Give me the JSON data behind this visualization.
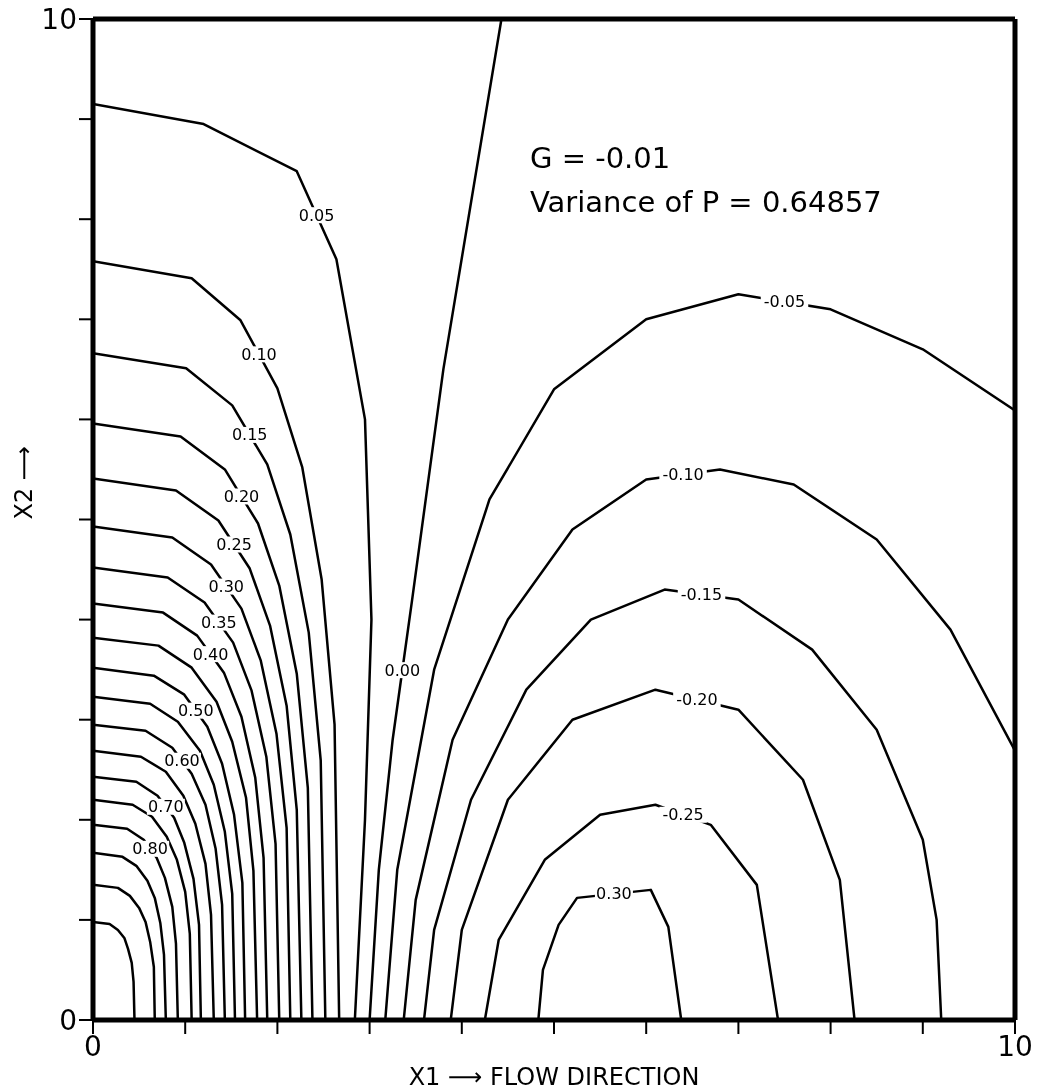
{
  "chart_data": {
    "type": "line",
    "xlabel": "X1 ⟶ FLOW DIRECTION",
    "ylabel": "X2 ⟶",
    "xlim": [
      0,
      10
    ],
    "ylim": [
      0,
      10
    ],
    "xticks": [
      0,
      {
        "value": 1,
        "label": null
      },
      {
        "value": 2,
        "label": null
      },
      {
        "value": 3,
        "label": null
      },
      {
        "value": 4,
        "label": null
      },
      {
        "value": 5,
        "label": null
      },
      {
        "value": 6,
        "label": null
      },
      {
        "value": 7,
        "label": null
      },
      {
        "value": 8,
        "label": null
      },
      {
        "value": 9,
        "label": null
      },
      10
    ],
    "yticks": [
      0,
      {
        "value": 1,
        "label": null
      },
      {
        "value": 2,
        "label": null
      },
      {
        "value": 3,
        "label": null
      },
      {
        "value": 4,
        "label": null
      },
      {
        "value": 5,
        "label": null
      },
      {
        "value": 6,
        "label": null
      },
      {
        "value": 7,
        "label": null
      },
      {
        "value": 8,
        "label": null
      },
      {
        "value": 9,
        "label": null
      },
      10
    ],
    "annotations": [
      "G = -0.01",
      "Variance of P = 0.64857",
      {
        "text": "0.05",
        "x": 2.425,
        "y": 8.04
      },
      {
        "text": "0.10",
        "x": 1.8,
        "y": 6.65
      },
      {
        "text": "0.15",
        "x": 1.7,
        "y": 5.845
      },
      {
        "text": "0.20",
        "x": 1.61,
        "y": 5.23
      },
      {
        "text": "0.25",
        "x": 1.53,
        "y": 4.75
      },
      {
        "text": "0.30",
        "x": 1.445,
        "y": 4.33
      },
      {
        "text": "0.35",
        "x": 1.365,
        "y": 3.97
      },
      {
        "text": "0.40",
        "x": 1.275,
        "y": 3.655
      },
      {
        "text": "0.50",
        "x": 1.115,
        "y": 3.09
      },
      {
        "text": "0.60",
        "x": 0.965,
        "y": 2.59
      },
      {
        "text": "0.70",
        "x": 0.79,
        "y": 2.13
      },
      {
        "text": "0.80",
        "x": 0.62,
        "y": 1.71
      },
      {
        "text": "0.00",
        "x": 3.355,
        "y": 3.495
      },
      {
        "text": "-0.05",
        "x": 7.5,
        "y": 7.175
      },
      {
        "text": "-0.10",
        "x": 6.4,
        "y": 5.45
      },
      {
        "text": "-0.15",
        "x": 6.6,
        "y": 4.25
      },
      {
        "text": "-0.20",
        "x": 6.55,
        "y": 3.2
      },
      {
        "text": "-0.25",
        "x": 6.4,
        "y": 2.05
      },
      {
        "text": "0.30",
        "x": 5.65,
        "y": 1.26
      }
    ],
    "series": [
      {
        "color": "#000000",
        "x": [
          0,
          1.2,
          2.21,
          2.64,
          2.95,
          3.02,
          2.95,
          2.84
        ],
        "values": [
          9.15,
          8.95,
          8.48,
          7.6,
          6.0,
          4.0,
          2.0,
          0
        ]
      },
      {
        "color": "#000000",
        "x": [
          0,
          1.07,
          1.6,
          2.0,
          2.27,
          2.48,
          2.62,
          2.67
        ],
        "values": [
          7.58,
          7.41,
          6.99,
          6.31,
          5.52,
          4.4,
          2.95,
          0
        ]
      },
      {
        "color": "#000000",
        "x": [
          0,
          1.01,
          1.51,
          1.89,
          2.14,
          2.34,
          2.47,
          2.52
        ],
        "values": [
          6.66,
          6.51,
          6.14,
          5.55,
          4.85,
          3.87,
          2.59,
          0
        ]
      },
      {
        "color": "#000000",
        "x": [
          0,
          0.95,
          1.43,
          1.79,
          2.02,
          2.21,
          2.33,
          2.38
        ],
        "values": [
          5.96,
          5.83,
          5.5,
          4.96,
          4.34,
          3.46,
          2.32,
          0
        ]
      },
      {
        "color": "#000000",
        "x": [
          0,
          0.9,
          1.36,
          1.7,
          1.92,
          2.1,
          2.21,
          2.26
        ],
        "values": [
          5.41,
          5.29,
          4.99,
          4.51,
          3.94,
          3.14,
          2.1,
          0
        ]
      },
      {
        "color": "#000000",
        "x": [
          0,
          0.86,
          1.28,
          1.61,
          1.82,
          1.99,
          2.1,
          2.14
        ],
        "values": [
          4.93,
          4.82,
          4.55,
          4.11,
          3.59,
          2.86,
          1.92,
          0
        ]
      },
      {
        "color": "#000000",
        "x": [
          0,
          0.81,
          1.21,
          1.52,
          1.72,
          1.88,
          1.98,
          2.02
        ],
        "values": [
          4.52,
          4.42,
          4.17,
          3.77,
          3.29,
          2.63,
          1.76,
          0
        ]
      },
      {
        "color": "#000000",
        "x": [
          0,
          0.76,
          1.13,
          1.42,
          1.61,
          1.76,
          1.85,
          1.89
        ],
        "values": [
          4.16,
          4.07,
          3.84,
          3.47,
          3.03,
          2.42,
          1.62,
          0
        ]
      },
      {
        "color": "#000000",
        "x": [
          0,
          0.71,
          1.07,
          1.34,
          1.51,
          1.66,
          1.74,
          1.78
        ],
        "values": [
          3.82,
          3.74,
          3.52,
          3.18,
          2.78,
          2.22,
          1.49,
          0
        ]
      },
      {
        "color": "#000000",
        "x": [
          0,
          0.66,
          0.99,
          1.24,
          1.4,
          1.53,
          1.62,
          1.65
        ],
        "values": [
          3.52,
          3.44,
          3.25,
          2.93,
          2.56,
          2.05,
          1.37,
          0
        ]
      },
      {
        "color": "#000000",
        "x": [
          0,
          0.62,
          0.92,
          1.16,
          1.31,
          1.43,
          1.51,
          1.54
        ],
        "values": [
          3.23,
          3.16,
          2.98,
          2.69,
          2.35,
          1.88,
          1.26,
          0
        ]
      },
      {
        "color": "#000000",
        "x": [
          0,
          0.57,
          0.86,
          1.07,
          1.22,
          1.33,
          1.4,
          1.43
        ],
        "values": [
          2.95,
          2.89,
          2.72,
          2.46,
          2.15,
          1.71,
          1.15,
          0
        ]
      },
      {
        "color": "#000000",
        "x": [
          0,
          0.52,
          0.79,
          0.98,
          1.11,
          1.22,
          1.28,
          1.31
        ],
        "values": [
          2.69,
          2.63,
          2.48,
          2.24,
          1.96,
          1.56,
          1.05,
          0
        ]
      },
      {
        "color": "#000000",
        "x": [
          0,
          0.47,
          0.7,
          0.88,
          0.99,
          1.09,
          1.15,
          1.17
        ],
        "values": [
          2.43,
          2.38,
          2.24,
          2.02,
          1.77,
          1.41,
          0.95,
          0
        ]
      },
      {
        "color": "#000000",
        "x": [
          0,
          0.43,
          0.64,
          0.8,
          0.91,
          1.0,
          1.05,
          1.07
        ],
        "values": [
          2.2,
          2.15,
          2.03,
          1.83,
          1.6,
          1.28,
          0.86,
          0
        ]
      },
      {
        "color": "#000000",
        "x": [
          0,
          0.37,
          0.55,
          0.69,
          0.78,
          0.86,
          0.9,
          0.92
        ],
        "values": [
          1.95,
          1.91,
          1.8,
          1.62,
          1.42,
          1.13,
          0.76,
          0
        ]
      },
      {
        "color": "#000000",
        "x": [
          0,
          0.32,
          0.47,
          0.59,
          0.67,
          0.73,
          0.77,
          0.79
        ],
        "values": [
          1.67,
          1.63,
          1.54,
          1.39,
          1.22,
          0.97,
          0.65,
          0
        ]
      },
      {
        "color": "#000000",
        "x": [
          0,
          0.27,
          0.4,
          0.5,
          0.57,
          0.62,
          0.66,
          0.67
        ],
        "values": [
          1.35,
          1.32,
          1.24,
          1.12,
          0.98,
          0.78,
          0.53,
          0
        ]
      },
      {
        "color": "#000000",
        "x": [
          0,
          0.18,
          0.27,
          0.34,
          0.38,
          0.42,
          0.44,
          0.45
        ],
        "values": [
          0.98,
          0.96,
          0.9,
          0.82,
          0.71,
          0.57,
          0.38,
          0
        ]
      },
      {
        "color": "#000000",
        "x": [
          3.0,
          3.1,
          3.25,
          3.46,
          3.8,
          4.43
        ],
        "values": [
          0,
          1.5,
          2.8,
          4.19,
          6.5,
          10
        ]
      },
      {
        "color": "#000000",
        "x": [
          3.17,
          3.3,
          3.7,
          4.3,
          5.0,
          6.0,
          7.0,
          8.0,
          9.0,
          10
        ],
        "values": [
          0,
          1.5,
          3.5,
          5.2,
          6.3,
          7.0,
          7.25,
          7.1,
          6.7,
          6.09
        ]
      },
      {
        "color": "#000000",
        "x": [
          3.37,
          3.5,
          3.9,
          4.5,
          5.2,
          6.0,
          6.8,
          7.6,
          8.5,
          9.3,
          10
        ],
        "values": [
          0,
          1.2,
          2.8,
          4.0,
          4.9,
          5.4,
          5.5,
          5.35,
          4.8,
          3.9,
          2.69
        ]
      },
      {
        "color": "#000000",
        "x": [
          3.59,
          3.7,
          4.1,
          4.7,
          5.4,
          6.2,
          7.0,
          7.8,
          8.5,
          9.0,
          9.15,
          9.2
        ],
        "values": [
          0,
          0.9,
          2.2,
          3.3,
          4.0,
          4.3,
          4.2,
          3.7,
          2.9,
          1.8,
          1.0,
          0
        ]
      },
      {
        "color": "#000000",
        "x": [
          3.88,
          4.0,
          4.5,
          5.2,
          6.1,
          7.0,
          7.7,
          8.1,
          8.26
        ],
        "values": [
          0,
          0.9,
          2.2,
          3.0,
          3.3,
          3.1,
          2.4,
          1.4,
          0
        ]
      },
      {
        "color": "#000000",
        "x": [
          4.25,
          4.4,
          4.9,
          5.5,
          6.1,
          6.7,
          7.2,
          7.43
        ],
        "values": [
          0,
          0.8,
          1.6,
          2.05,
          2.15,
          1.95,
          1.35,
          0
        ]
      },
      {
        "color": "#000000",
        "x": [
          4.83,
          4.88,
          5.05,
          5.25,
          6.05,
          6.24,
          6.38
        ],
        "values": [
          0,
          0.5,
          0.95,
          1.22,
          1.3,
          0.93,
          0
        ]
      }
    ]
  }
}
